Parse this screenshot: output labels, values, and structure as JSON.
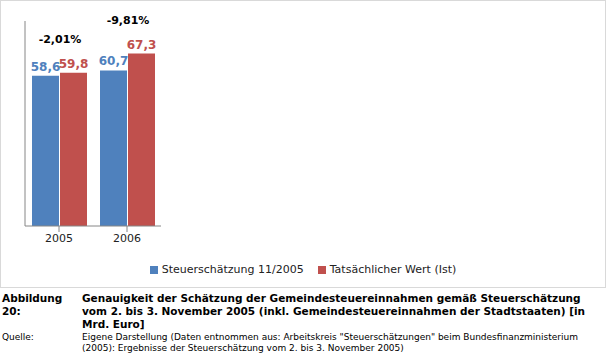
{
  "chart_data": {
    "type": "bar",
    "categories": [
      "2005",
      "2006"
    ],
    "series": [
      {
        "name": "Steuerschätzung 11/2005",
        "color": "#4f81bd",
        "values": [
          58.6,
          60.7
        ],
        "value_labels": [
          "58,6",
          "60,7"
        ]
      },
      {
        "name": "Tatsächlicher Wert (Ist)",
        "color": "#c0504d",
        "values": [
          59.8,
          67.3
        ],
        "value_labels": [
          "59,8",
          "67,3"
        ]
      }
    ],
    "ylim": [
      0,
      80
    ],
    "tick_labels": "x",
    "data_labels": true,
    "legend": "bottom",
    "grid": false,
    "annotations": [
      {
        "category": "2005",
        "text": "-2,01%"
      },
      {
        "category": "2006",
        "text": "-9,81%"
      }
    ]
  },
  "caption": {
    "label": "Abbildung 20:",
    "text": "Genauigkeit der Schätzung der Gemeindesteuereinnahmen gemäß Steuerschätzung vom 2. bis 3. November 2005 (inkl. Gemeindesteuereinnahmen der Stadtstaaten) [in Mrd. Euro]"
  },
  "source": {
    "label": "Quelle:",
    "text": "Eigene Darstellung (Daten entnommen aus: Arbeitskreis \"Steuerschätzungen\" beim Bundesfinanzministerium (2005): Ergebnisse der Steuerschätzung vom 2. bis 3. November 2005)"
  }
}
